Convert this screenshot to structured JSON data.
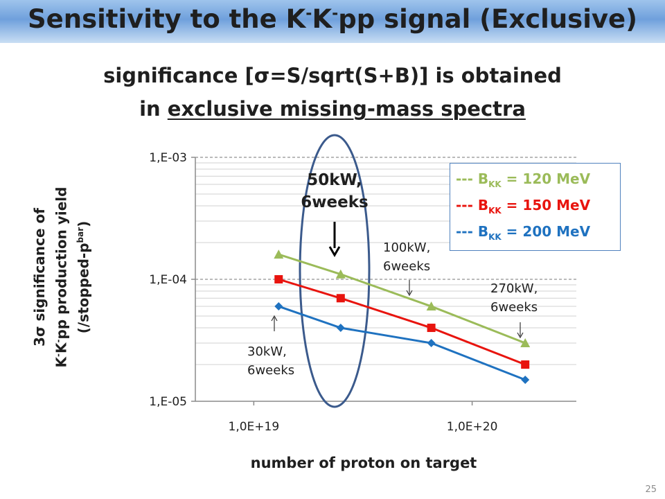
{
  "slide": {
    "title_main": "Sensitivity to the K",
    "title_sup1": "-",
    "title_mid": "K",
    "title_sup2": "-",
    "title_end": "pp signal (Exclusive)",
    "subtitle_line1": "significance [σ=S/sqrt(S+B)] is obtained",
    "subtitle_line2_prefix": "in ",
    "subtitle_line2_underlined": "exclusive missing-mass spectra",
    "page_number": "25"
  },
  "annotations": {
    "highlight": "50kW,\n6weeks",
    "a100": "100kW,\n6weeks",
    "a270": "270kW,\n6weeks",
    "a30": "30kW,\n6weeks"
  },
  "chart_data": {
    "type": "line",
    "xscale": "log",
    "yscale": "log",
    "xlim": [
      5.4e+18,
      3e+20
    ],
    "ylim": [
      1e-05,
      0.001
    ],
    "x_ticks": [
      1e+19,
      1e+20
    ],
    "x_tick_labels": [
      "1,0E+19",
      "1,0E+20"
    ],
    "y_ticks": [
      1e-05,
      0.0001,
      0.001
    ],
    "y_tick_labels": [
      "1,E-05",
      "1,E-04",
      "1,E-03"
    ],
    "ylabel_line1": "3σ significance of",
    "ylabel_line2_a": "K",
    "ylabel_line2_sup1": "-",
    "ylabel_line2_b": "K",
    "ylabel_line2_sup2": "-",
    "ylabel_line2_c": "pp production yield",
    "ylabel_line3_a": "(/stopped-p",
    "ylabel_line3_sup": "bar",
    "ylabel_line3_b": ")",
    "xlabel": "number of proton on target",
    "grid": {
      "major_y": "dashed",
      "minor_y": "solid"
    },
    "legend_position": "top-right",
    "series": [
      {
        "legend_prefix": "--- B",
        "legend_sub": "KK",
        "legend_suffix": " = 120 MeV",
        "color": "#9bbb59",
        "marker": "triangle",
        "x": [
          1.3e+19,
          2.5e+19,
          6.5e+19,
          1.75e+20
        ],
        "y": [
          0.00016,
          0.00011,
          6e-05,
          3e-05
        ]
      },
      {
        "legend_prefix": "--- B",
        "legend_sub": "KK",
        "legend_suffix": " = 150 MeV",
        "color": "#e8140e",
        "marker": "square",
        "x": [
          1.3e+19,
          2.5e+19,
          6.5e+19,
          1.75e+20
        ],
        "y": [
          0.0001,
          7e-05,
          4e-05,
          2e-05
        ]
      },
      {
        "legend_prefix": "--- B",
        "legend_sub": "KK",
        "legend_suffix": " = 200 MeV",
        "color": "#1f72c0",
        "marker": "diamond",
        "x": [
          1.3e+19,
          2.5e+19,
          6.5e+19,
          1.75e+20
        ],
        "y": [
          6e-05,
          4e-05,
          3e-05,
          1.5e-05
        ]
      }
    ]
  }
}
